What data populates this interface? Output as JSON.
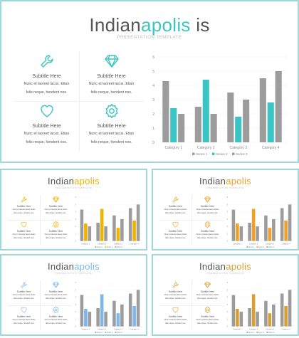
{
  "title": {
    "part1": "Indian",
    "part2": "apolis",
    "part3": " is"
  },
  "thumb_title": {
    "part1": "Indian",
    "part2": "apolis"
  },
  "subtitle": "PRESENTATION TEMPLATE",
  "features": [
    {
      "title": "Subtitle  Here",
      "line1": "Nunc et laoreet lacus. Etian",
      "line2": "felis neque, hendent nos.",
      "icon": "wrench-icon"
    },
    {
      "title": "Subtitle  Here",
      "line1": "Nunc et laoreet lacus. Etian",
      "line2": "felis neque, hendent nos.",
      "icon": "diamond-icon"
    },
    {
      "title": "Subtitle  Here",
      "line1": "Nunc et laoreet lacus. Etian",
      "line2": "felis neque, hendent nos.",
      "icon": "heart-icon"
    },
    {
      "title": "Subtitle  Here",
      "line1": "Nunc et laoreet lacus. Etian",
      "line2": "felis neque, hendent nos.",
      "icon": "gear-icon"
    }
  ],
  "themes": [
    {
      "name": "main",
      "accent": "#3cc4c4"
    },
    {
      "name": "yellow",
      "accent": "#f0b400"
    },
    {
      "name": "orange",
      "accent": "#f0a028"
    },
    {
      "name": "blue",
      "accent": "#7eb6ef"
    },
    {
      "name": "gold",
      "accent": "#d6a032"
    }
  ],
  "chart_data": {
    "type": "bar",
    "categories": [
      "Category 1",
      "Category 2",
      "Category 3",
      "Category 4"
    ],
    "series": [
      {
        "name": "Series 1",
        "values": [
          4.3,
          2.5,
          3.5,
          4.5
        ],
        "color": "#9c9c9c"
      },
      {
        "name": "Series 2",
        "values": [
          2.4,
          4.4,
          1.8,
          2.8
        ],
        "color": "accent"
      },
      {
        "name": "Series 3",
        "values": [
          2.0,
          2.0,
          3.0,
          5.0
        ],
        "color": "#9c9c9c"
      }
    ],
    "ylim": [
      0,
      6
    ],
    "yticks": [
      "0",
      "1",
      "2",
      "3",
      "4",
      "5",
      "6"
    ],
    "legend": "bottom"
  }
}
